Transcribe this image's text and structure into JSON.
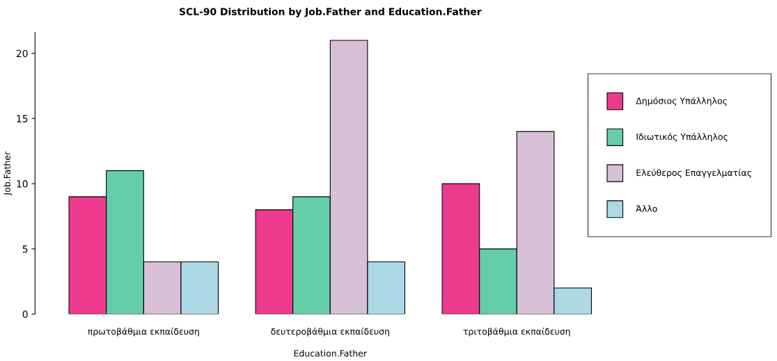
{
  "chart_data": {
    "type": "bar",
    "title": "SCL-90 Distribution by Job.Father and Education.Father",
    "xlabel": "Education.Father",
    "ylabel": "Job.Father",
    "categories": [
      "πρωτοβάθμια εκπαίδευση",
      "δευτεροβάθμια εκπαίδευση",
      "τριτοβάθμια εκπαίδευση"
    ],
    "series": [
      {
        "name": "Δημόσιος Υπάλληλος",
        "color": "#ee3a8c",
        "values": [
          9,
          8,
          10
        ]
      },
      {
        "name": "Ιδιωτικός Υπάλληλος",
        "color": "#66cdaa",
        "values": [
          11,
          9,
          5
        ]
      },
      {
        "name": "Ελεύθερος Επαγγελματίας",
        "color": "#d8bfd8",
        "values": [
          4,
          21,
          14
        ]
      },
      {
        "name": "Άλλο",
        "color": "#add8e6",
        "values": [
          4,
          4,
          2
        ]
      }
    ],
    "ylim": [
      0,
      21.6
    ],
    "yticks": [
      0,
      5,
      10,
      15,
      20
    ],
    "grid": false,
    "legend": "right"
  }
}
